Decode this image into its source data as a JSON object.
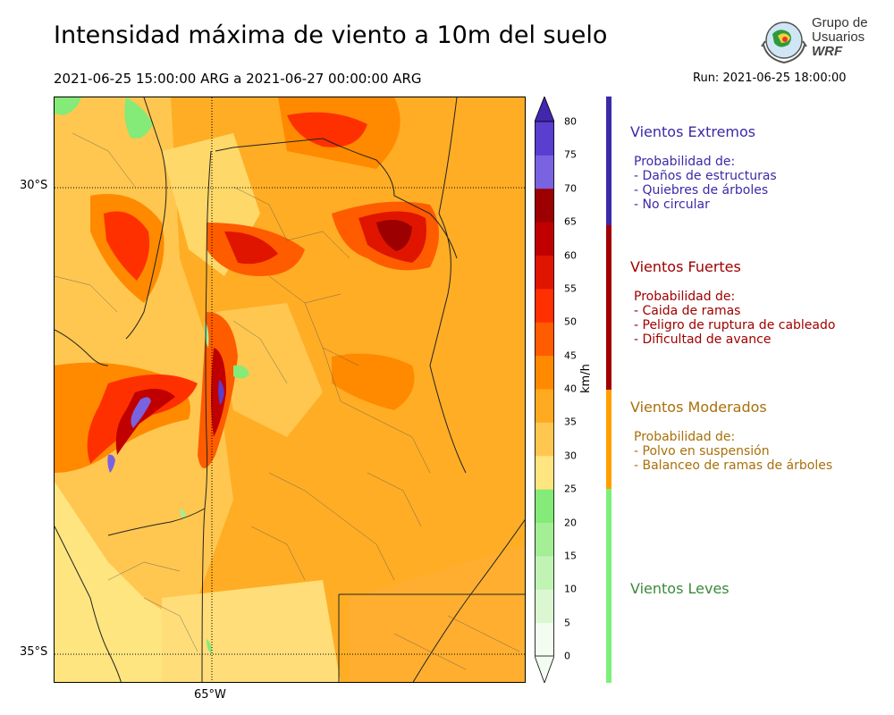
{
  "header": {
    "title": "Intensidad máxima de viento a 10m del suelo",
    "period": "2021-06-25 15:00:00 ARG  a  2021-06-27 00:00:00 ARG",
    "run": "Run: 2021-06-25 18:00:00"
  },
  "logo": {
    "line1": "Grupo de",
    "line2": "Usuarios",
    "line3": "WRF"
  },
  "map": {
    "lat_labels": [
      "30°S",
      "35°S"
    ],
    "lon_labels": [
      "65°W"
    ],
    "grid": "dotted"
  },
  "colorbar": {
    "unit": "km/h",
    "ticks": [
      "0",
      "5",
      "10",
      "15",
      "20",
      "25",
      "30",
      "35",
      "40",
      "45",
      "50",
      "55",
      "60",
      "65",
      "70",
      "75",
      "80"
    ],
    "colors": [
      "#f3fcf0",
      "#dbf7d2",
      "#c1f3b4",
      "#a4ee96",
      "#84ea78",
      "#ffe580",
      "#ffc750",
      "#ffaa20",
      "#ff8a00",
      "#ff5c00",
      "#ff3000",
      "#e01500",
      "#c00000",
      "#9c0000",
      "#7a63e0",
      "#5a3ecf",
      "#4326ae"
    ],
    "extend": "both"
  },
  "categories": [
    {
      "title": "Vientos Extremos",
      "color": "#3a2aa8",
      "lines": [
        "Probabilidad de:",
        "- Daños de estructuras",
        "- Quiebres de árboles",
        "- No circular"
      ]
    },
    {
      "title": "Vientos Fuertes",
      "color": "#a00000",
      "lines": [
        "Probabilidad de:",
        "- Caida de ramas",
        "- Peligro de ruptura de cableado",
        "- Dificultad de avance"
      ]
    },
    {
      "title": "Vientos Moderados",
      "color": "#a8700a",
      "lines": [
        "Probabilidad de:",
        "- Polvo en suspensión",
        "- Balanceo de ramas de árboles"
      ]
    },
    {
      "title": "Vientos Leves",
      "color": "#3a8a3a",
      "lines": []
    }
  ],
  "bands": {
    "extremos": "#3a2aa8",
    "fuertes": "#a00000",
    "moderados": "#ffa000",
    "leves": "#7ef07a"
  }
}
